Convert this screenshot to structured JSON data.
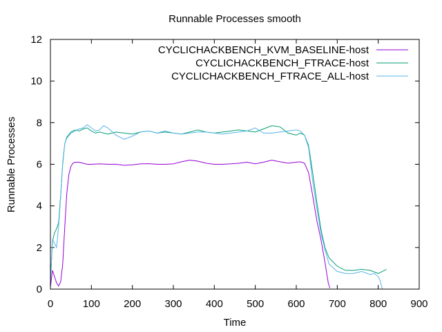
{
  "chart_data": {
    "type": "line",
    "title": "Runnable Processes smooth",
    "xlabel": "Time",
    "ylabel": "Runnable Processes",
    "xlim": [
      0,
      900
    ],
    "ylim": [
      0,
      12
    ],
    "xticks": [
      0,
      100,
      200,
      300,
      400,
      500,
      600,
      700,
      800,
      900
    ],
    "yticks": [
      0,
      2,
      4,
      6,
      8,
      10,
      12
    ],
    "grid": false,
    "legend_position": "top-right",
    "series": [
      {
        "name": "CYCLICHACKBENCH_KVM_BASELINE-host",
        "color": "#9400d3",
        "x": [
          0,
          5,
          10,
          15,
          20,
          25,
          30,
          35,
          40,
          45,
          50,
          55,
          60,
          70,
          80,
          90,
          100,
          120,
          140,
          160,
          180,
          200,
          220,
          240,
          260,
          280,
          300,
          320,
          340,
          360,
          380,
          400,
          420,
          440,
          460,
          480,
          500,
          520,
          540,
          560,
          580,
          600,
          610,
          620,
          630,
          640,
          650,
          660,
          670,
          678,
          682
        ],
        "y": [
          0.1,
          0.9,
          0.6,
          0.3,
          0.15,
          0.35,
          1.2,
          3.0,
          4.6,
          5.5,
          5.9,
          6.05,
          6.1,
          6.1,
          6.05,
          6.0,
          6.0,
          6.02,
          6.0,
          6.0,
          5.95,
          5.97,
          6.02,
          6.03,
          6.0,
          6.0,
          6.02,
          6.12,
          6.2,
          6.15,
          6.05,
          6.0,
          6.0,
          6.02,
          6.05,
          6.1,
          6.02,
          6.1,
          6.2,
          6.12,
          6.05,
          6.1,
          6.12,
          6.05,
          5.6,
          4.5,
          3.3,
          2.4,
          1.3,
          0.3,
          0.05
        ]
      },
      {
        "name": "CYCLICHACKBENCH_FTRACE-host",
        "color": "#009e73",
        "x": [
          0,
          5,
          10,
          15,
          20,
          25,
          30,
          35,
          40,
          50,
          60,
          70,
          80,
          90,
          100,
          110,
          120,
          140,
          160,
          180,
          200,
          220,
          240,
          260,
          280,
          300,
          320,
          340,
          360,
          380,
          400,
          420,
          440,
          460,
          480,
          500,
          520,
          540,
          560,
          580,
          600,
          610,
          620,
          630,
          640,
          650,
          660,
          670,
          680,
          700,
          720,
          740,
          760,
          780,
          800,
          810,
          820
        ],
        "y": [
          0.3,
          2.3,
          2.7,
          2.9,
          3.2,
          4.5,
          6.0,
          7.0,
          7.3,
          7.55,
          7.65,
          7.6,
          7.7,
          7.75,
          7.6,
          7.5,
          7.55,
          7.45,
          7.55,
          7.5,
          7.45,
          7.55,
          7.6,
          7.5,
          7.55,
          7.5,
          7.45,
          7.55,
          7.65,
          7.55,
          7.5,
          7.55,
          7.6,
          7.65,
          7.6,
          7.55,
          7.7,
          7.85,
          7.8,
          7.5,
          7.4,
          7.5,
          7.4,
          6.9,
          5.6,
          4.2,
          2.9,
          2.0,
          1.5,
          1.1,
          0.9,
          0.9,
          0.95,
          0.9,
          0.75,
          0.85,
          0.95
        ]
      },
      {
        "name": "CYCLICHACKBENCH_FTRACE_ALL-host",
        "color": "#56b4e9",
        "x": [
          0,
          5,
          10,
          15,
          20,
          25,
          30,
          35,
          40,
          50,
          60,
          70,
          80,
          90,
          100,
          110,
          120,
          130,
          140,
          160,
          180,
          200,
          220,
          240,
          260,
          280,
          300,
          320,
          340,
          360,
          380,
          400,
          420,
          440,
          460,
          480,
          500,
          520,
          540,
          560,
          580,
          600,
          610,
          620,
          630,
          640,
          650,
          660,
          670,
          680,
          700,
          720,
          740,
          760,
          780,
          790,
          800,
          805,
          810
        ],
        "y": [
          0.3,
          2.4,
          2.2,
          2.0,
          3.0,
          4.4,
          6.1,
          7.0,
          7.25,
          7.5,
          7.6,
          7.7,
          7.75,
          7.9,
          7.75,
          7.6,
          7.65,
          7.85,
          7.75,
          7.4,
          7.2,
          7.35,
          7.55,
          7.6,
          7.5,
          7.6,
          7.5,
          7.45,
          7.5,
          7.55,
          7.55,
          7.5,
          7.45,
          7.5,
          7.55,
          7.6,
          7.75,
          7.5,
          7.5,
          7.55,
          7.6,
          7.65,
          7.6,
          7.4,
          6.8,
          5.2,
          3.9,
          2.7,
          1.9,
          1.2,
          0.85,
          0.75,
          0.75,
          0.85,
          0.7,
          0.75,
          0.6,
          0.4,
          0.0
        ]
      }
    ]
  }
}
